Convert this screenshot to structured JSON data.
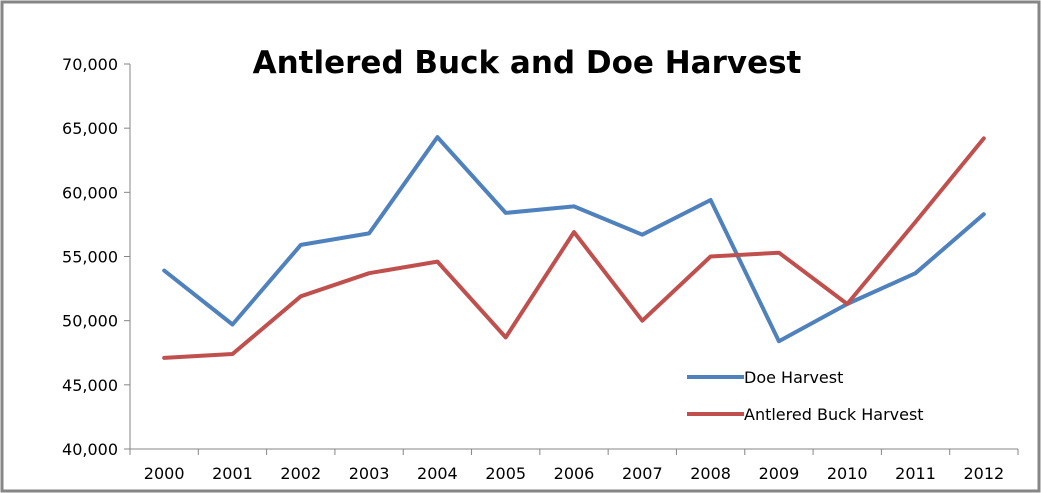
{
  "chart_data": {
    "type": "line",
    "title": "Antlered Buck and Doe Harvest",
    "xlabel": "",
    "ylabel": "",
    "categories": [
      "2000",
      "2001",
      "2002",
      "2003",
      "2004",
      "2005",
      "2006",
      "2007",
      "2008",
      "2009",
      "2010",
      "2011",
      "2012"
    ],
    "ylim": [
      40000,
      70000
    ],
    "yticks": [
      40000,
      45000,
      50000,
      55000,
      60000,
      65000,
      70000
    ],
    "ytick_labels": [
      "40,000",
      "45,000",
      "50,000",
      "55,000",
      "60,000",
      "65,000",
      "70,000"
    ],
    "grid": false,
    "legend_position": "bottom-right",
    "series": [
      {
        "name": "Doe Harvest",
        "color": "#4F81BD",
        "values": [
          53900,
          49700,
          55900,
          56800,
          64300,
          58400,
          58900,
          56700,
          59400,
          48400,
          51300,
          53700,
          58300
        ]
      },
      {
        "name": "Antlered Buck Harvest",
        "color": "#C0504D",
        "values": [
          47100,
          47400,
          51900,
          53700,
          54600,
          48700,
          56900,
          50000,
          55000,
          55300,
          51300,
          57700,
          64200
        ]
      }
    ]
  },
  "colors": {
    "frame_border": "#868686",
    "axis": "#868686"
  }
}
